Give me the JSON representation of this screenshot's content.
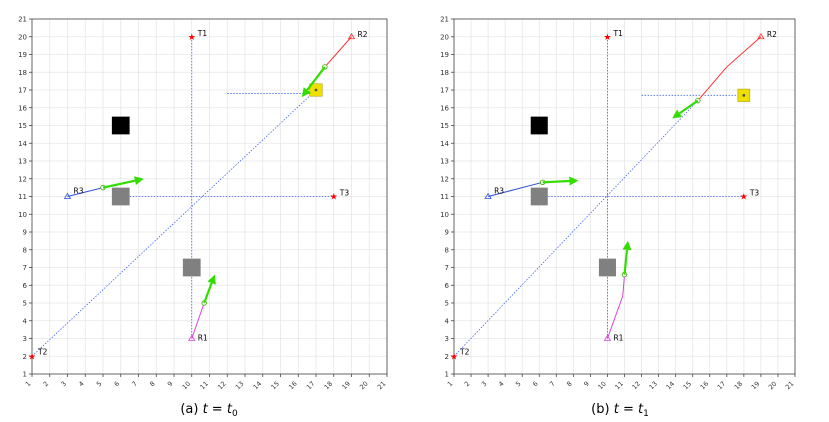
{
  "panels": [
    {
      "caption": {
        "prefix": "(a) ",
        "var": "t",
        "eq": " = ",
        "sym": "t",
        "sub": "0"
      },
      "xlim": [
        1,
        21
      ],
      "ylim": [
        1,
        21
      ],
      "targets": [
        {
          "label": "T1",
          "x": 10,
          "y": 20
        },
        {
          "label": "T2",
          "x": 1,
          "y": 2
        },
        {
          "label": "T3",
          "x": 18,
          "y": 11
        }
      ],
      "robots": [
        {
          "label": "R1",
          "start": [
            10,
            3
          ],
          "path": [
            [
              10,
              3
            ],
            [
              10.7,
              5
            ]
          ],
          "arrow": [
            11.3,
            6.6
          ],
          "color": "#e040e0"
        },
        {
          "label": "R2",
          "start": [
            19,
            20
          ],
          "path": [
            [
              19,
              20
            ],
            [
              17.5,
              18.3
            ]
          ],
          "arrow": [
            16.2,
            16.6
          ],
          "color": "#ff3030"
        },
        {
          "label": "R3",
          "start": [
            3,
            11
          ],
          "path": [
            [
              3,
              11
            ],
            [
              5,
              11.5
            ]
          ],
          "arrow": [
            7.3,
            12
          ],
          "color": "#3050e0"
        }
      ],
      "guide_lines": [
        {
          "from": [
            10,
            3
          ],
          "to": [
            10,
            20
          ]
        },
        {
          "from": [
            1,
            2
          ],
          "to": [
            17,
            17
          ]
        },
        {
          "from": [
            6,
            11
          ],
          "to": [
            18,
            11
          ]
        },
        {
          "from": [
            12,
            16.8
          ],
          "to": [
            17,
            16.8
          ]
        }
      ],
      "obstacles": [
        {
          "x": 6,
          "y": 15,
          "color": "#000000"
        },
        {
          "x": 6,
          "y": 11,
          "color": "#808080"
        },
        {
          "x": 10,
          "y": 7,
          "color": "#808080"
        }
      ],
      "marker": {
        "x": 17,
        "y": 17,
        "color": "#f0e000"
      }
    },
    {
      "caption": {
        "prefix": "(b) ",
        "var": "t",
        "eq": " = ",
        "sym": "t",
        "sub": "1"
      },
      "xlim": [
        1,
        21
      ],
      "ylim": [
        1,
        21
      ],
      "targets": [
        {
          "label": "T1",
          "x": 10,
          "y": 20
        },
        {
          "label": "T2",
          "x": 1,
          "y": 2
        },
        {
          "label": "T3",
          "x": 18,
          "y": 11
        }
      ],
      "robots": [
        {
          "label": "R1",
          "start": [
            10,
            3
          ],
          "path": [
            [
              10,
              3
            ],
            [
              10.9,
              5.4
            ],
            [
              11,
              6.6
            ]
          ],
          "arrow": [
            11.2,
            8.5
          ],
          "color": "#e040e0"
        },
        {
          "label": "R2",
          "start": [
            19,
            20
          ],
          "path": [
            [
              19,
              20
            ],
            [
              17,
              18.3
            ],
            [
              15.3,
              16.4
            ]
          ],
          "arrow": [
            13.8,
            15.4
          ],
          "color": "#ff3030"
        },
        {
          "label": "R3",
          "start": [
            3,
            11
          ],
          "path": [
            [
              3,
              11
            ],
            [
              6.2,
              11.8
            ]
          ],
          "arrow": [
            8.3,
            11.9
          ],
          "color": "#3050e0"
        }
      ],
      "guide_lines": [
        {
          "from": [
            10,
            3
          ],
          "to": [
            10,
            20
          ]
        },
        {
          "from": [
            1,
            2
          ],
          "to": [
            15.3,
            16.4
          ]
        },
        {
          "from": [
            6,
            11
          ],
          "to": [
            18,
            11
          ]
        },
        {
          "from": [
            12,
            16.7
          ],
          "to": [
            18,
            16.7
          ]
        }
      ],
      "obstacles": [
        {
          "x": 6,
          "y": 15,
          "color": "#000000"
        },
        {
          "x": 6,
          "y": 11,
          "color": "#808080"
        },
        {
          "x": 10,
          "y": 7,
          "color": "#808080"
        }
      ],
      "marker": {
        "x": 18,
        "y": 16.7,
        "color": "#f0e000"
      }
    }
  ],
  "colors": {
    "arrow": "#33dd00",
    "guide": "#4466ee",
    "target": "#ff0000",
    "grid": "#e6e6e6",
    "axis": "#444444"
  }
}
